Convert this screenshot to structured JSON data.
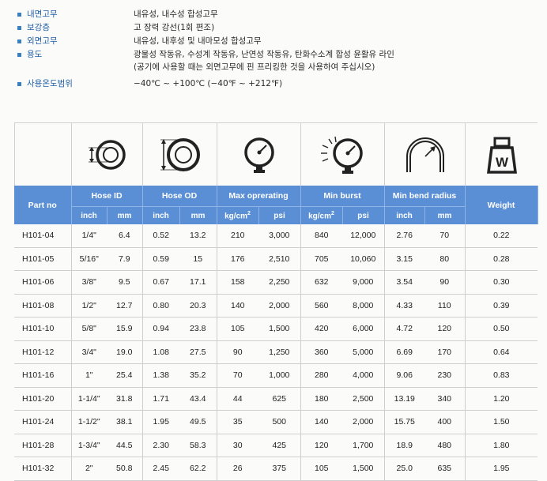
{
  "specs": [
    {
      "label": "내면고무",
      "lines": [
        "내유성, 내수성 합성고무"
      ]
    },
    {
      "label": "보강층",
      "lines": [
        "고 장력 강선(1회 편조)"
      ]
    },
    {
      "label": "외면고무",
      "lines": [
        "내유성, 내후성 및 내마모성 합성고무"
      ]
    },
    {
      "label": "용도",
      "lines": [
        "광물성 작동유, 수성계 작동유, 난연성 작동유, 탄화수소계 합성 윤활유 라인",
        "(공기에 사용할 때는 외면고무에 핀 프리킹한 것을 사용하여 주십시오)"
      ]
    },
    {
      "label": "사용온도범위",
      "lines": [
        "−40℃ ~ +100℃ (−40℉ ~ +212℉)"
      ]
    }
  ],
  "icons": [
    "hose-id-icon",
    "hose-od-icon",
    "pressure-gauge-icon",
    "burst-gauge-icon",
    "bend-radius-icon",
    "weight-icon"
  ],
  "weight_icon_letter": "W",
  "table": {
    "headers": {
      "part_no": "Part no",
      "hose_id": "Hose ID",
      "hose_od": "Hose OD",
      "max_operating": "Max oprerating",
      "min_burst": "Min burst",
      "min_bend_radius": "Min bend radius",
      "weight": "Weight"
    },
    "units": {
      "inch": "inch",
      "mm": "mm",
      "kgcm_base": "kg/cm",
      "kgcm_sup": "2",
      "psi": "psi"
    },
    "rows": [
      [
        "H101-04",
        "1/4\"",
        "6.4",
        "0.52",
        "13.2",
        "210",
        "3,000",
        "840",
        "12,000",
        "2.76",
        "70",
        "0.22"
      ],
      [
        "H101-05",
        "5/16\"",
        "7.9",
        "0.59",
        "15",
        "176",
        "2,510",
        "705",
        "10,060",
        "3.15",
        "80",
        "0.28"
      ],
      [
        "H101-06",
        "3/8\"",
        "9.5",
        "0.67",
        "17.1",
        "158",
        "2,250",
        "632",
        "9,000",
        "3.54",
        "90",
        "0.30"
      ],
      [
        "H101-08",
        "1/2\"",
        "12.7",
        "0.80",
        "20.3",
        "140",
        "2,000",
        "560",
        "8,000",
        "4.33",
        "110",
        "0.39"
      ],
      [
        "H101-10",
        "5/8\"",
        "15.9",
        "0.94",
        "23.8",
        "105",
        "1,500",
        "420",
        "6,000",
        "4.72",
        "120",
        "0.50"
      ],
      [
        "H101-12",
        "3/4\"",
        "19.0",
        "1.08",
        "27.5",
        "90",
        "1,250",
        "360",
        "5,000",
        "6.69",
        "170",
        "0.64"
      ],
      [
        "H101-16",
        "1\"",
        "25.4",
        "1.38",
        "35.2",
        "70",
        "1,000",
        "280",
        "4,000",
        "9.06",
        "230",
        "0.83"
      ],
      [
        "H101-20",
        "1-1/4\"",
        "31.8",
        "1.71",
        "43.4",
        "44",
        "625",
        "180",
        "2,500",
        "13.19",
        "340",
        "1.20"
      ],
      [
        "H101-24",
        "1-1/2\"",
        "38.1",
        "1.95",
        "49.5",
        "35",
        "500",
        "140",
        "2,000",
        "15.75",
        "400",
        "1.50"
      ],
      [
        "H101-28",
        "1-3/4\"",
        "44.5",
        "2.30",
        "58.3",
        "30",
        "425",
        "120",
        "1,700",
        "18.9",
        "480",
        "1.80"
      ],
      [
        "H101-32",
        "2\"",
        "50.8",
        "2.45",
        "62.2",
        "26",
        "375",
        "105",
        "1,500",
        "25.0",
        "635",
        "1.95"
      ]
    ]
  },
  "colors": {
    "header_bg": "#5a8fd6",
    "label": "#1f5fa8",
    "bullet": "#3a7fc1"
  }
}
